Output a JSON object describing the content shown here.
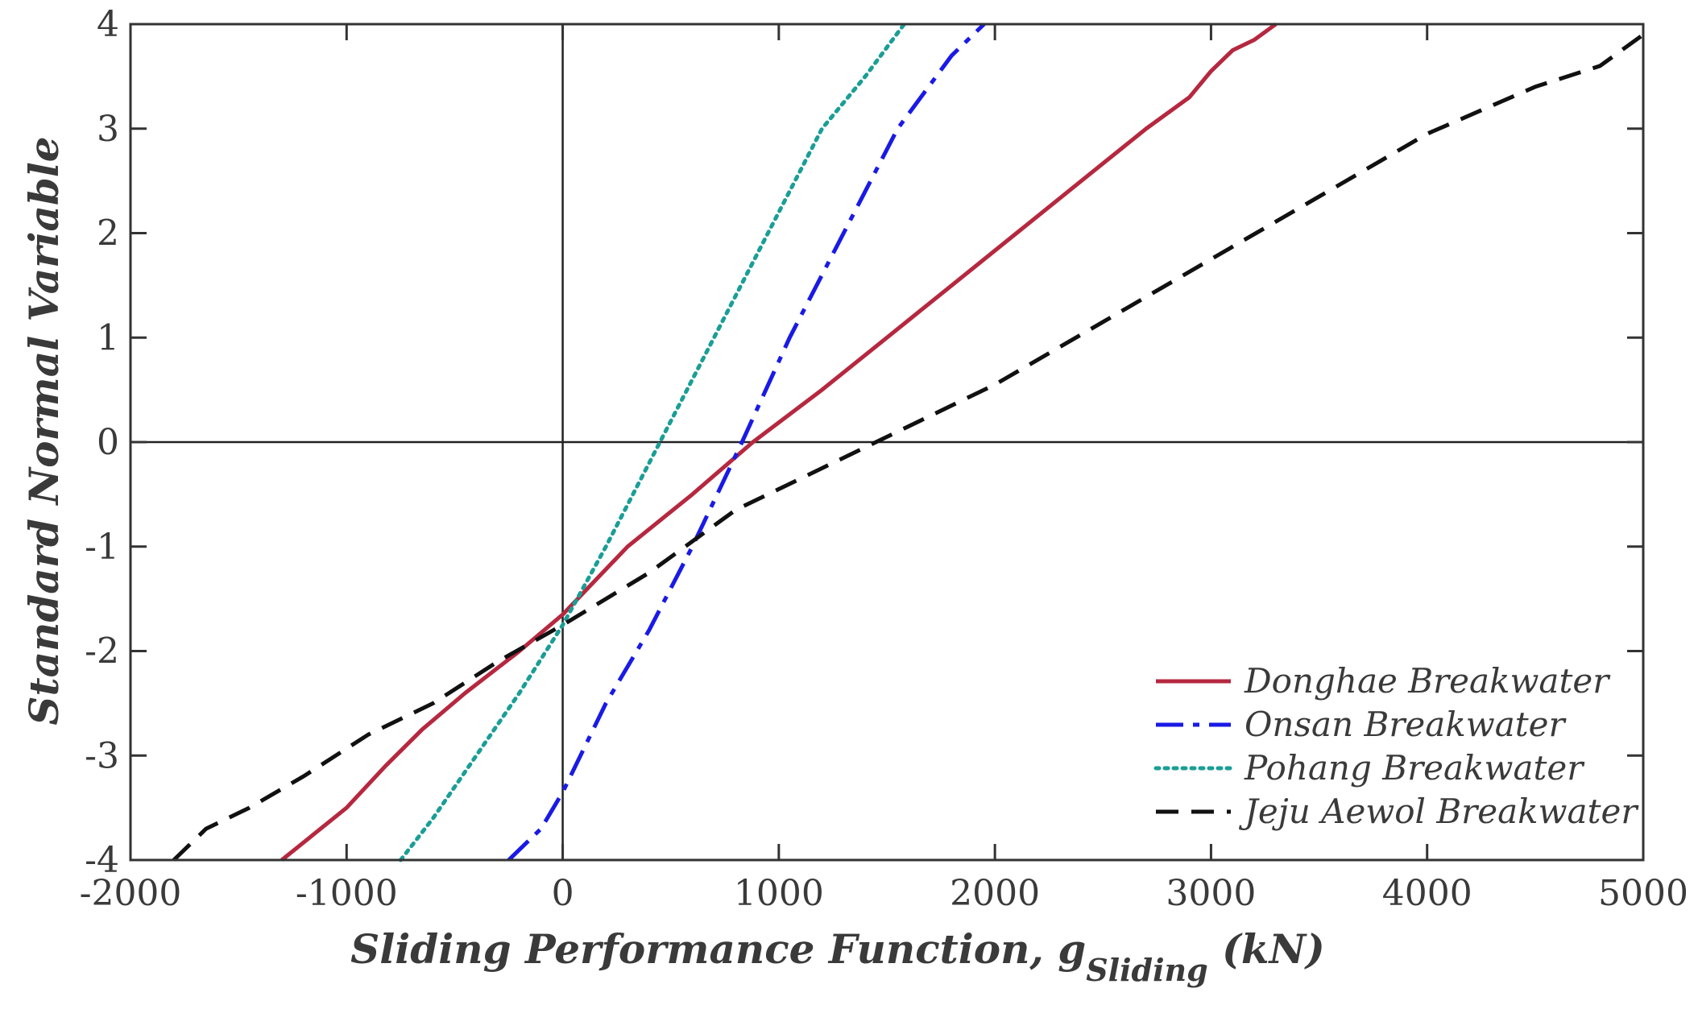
{
  "chart_data": {
    "type": "line",
    "title": "",
    "xlabel_main": "Sliding Performance Function, g",
    "xlabel_sub": "Sliding",
    "xlabel_unit": " (kN)",
    "ylabel": "Standard Normal Variable",
    "xlim": [
      -2000,
      5000
    ],
    "ylim": [
      -4,
      4
    ],
    "x_ticks": [
      -2000,
      -1000,
      0,
      1000,
      2000,
      3000,
      4000,
      5000
    ],
    "y_ticks": [
      -4,
      -3,
      -2,
      -1,
      0,
      1,
      2,
      3,
      4
    ],
    "x_tick_labels": [
      "-2000",
      "-1000",
      "0",
      "1000",
      "2000",
      "3000",
      "4000",
      "5000"
    ],
    "y_tick_labels": [
      "-4",
      "-3",
      "-2",
      "-1",
      "0",
      "1",
      "2",
      "3",
      "4"
    ],
    "reference_lines": {
      "x": 0,
      "y": 0
    },
    "grid": false,
    "legend_position": "bottom-right",
    "series": [
      {
        "name": "Donghae Breakwater",
        "color": "#b5283f",
        "style": "solid",
        "x": [
          -1300,
          -1150,
          -1000,
          -820,
          -650,
          -450,
          -200,
          0,
          300,
          600,
          880,
          1200,
          1500,
          1800,
          2100,
          2400,
          2700,
          2900,
          3000,
          3100,
          3200,
          3300
        ],
        "y": [
          -4.0,
          -3.75,
          -3.5,
          -3.1,
          -2.75,
          -2.4,
          -2.0,
          -1.65,
          -1.0,
          -0.5,
          0.0,
          0.5,
          1.0,
          1.5,
          2.0,
          2.5,
          3.0,
          3.3,
          3.55,
          3.75,
          3.85,
          4.0
        ]
      },
      {
        "name": "Onsan Breakwater",
        "color": "#1a1ae6",
        "style": "dashdot",
        "x": [
          -250,
          -100,
          0,
          200,
          400,
          600,
          830,
          1050,
          1300,
          1550,
          1800,
          1950
        ],
        "y": [
          -4.0,
          -3.7,
          -3.35,
          -2.5,
          -1.8,
          -1.0,
          0.0,
          1.0,
          2.0,
          3.0,
          3.7,
          4.0
        ]
      },
      {
        "name": "Pohang Breakwater",
        "color": "#1a9e96",
        "style": "dotted",
        "x": [
          -750,
          -600,
          -400,
          -200,
          0,
          200,
          450,
          700,
          950,
          1200,
          1400,
          1580
        ],
        "y": [
          -4.0,
          -3.6,
          -3.0,
          -2.4,
          -1.75,
          -1.0,
          0.0,
          1.0,
          2.0,
          3.0,
          3.5,
          4.0
        ]
      },
      {
        "name": "Jeju Aewol Breakwater",
        "color": "#111111",
        "style": "dashed",
        "x": [
          -1800,
          -1650,
          -1450,
          -1200,
          -900,
          -600,
          -300,
          0,
          400,
          800,
          1100,
          1500,
          2000,
          2500,
          3000,
          3500,
          4000,
          4500,
          4800,
          5000
        ],
        "y": [
          -4.0,
          -3.7,
          -3.5,
          -3.2,
          -2.8,
          -2.5,
          -2.1,
          -1.75,
          -1.25,
          -0.65,
          -0.35,
          0.05,
          0.55,
          1.15,
          1.75,
          2.35,
          2.95,
          3.4,
          3.6,
          3.9
        ]
      }
    ]
  }
}
